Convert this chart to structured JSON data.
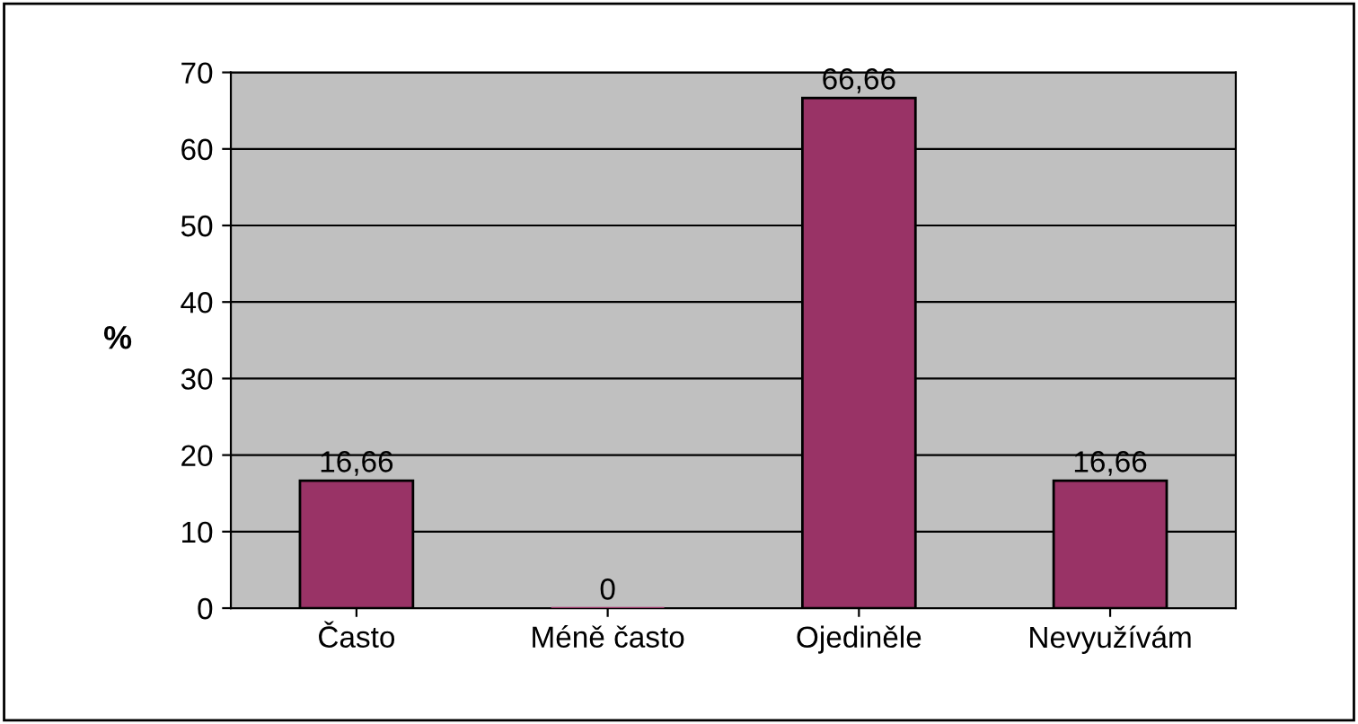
{
  "chart_data": {
    "type": "bar",
    "ylabel": "%",
    "categories": [
      "Často",
      "Méně často",
      "Ojediněle",
      "Nevyužívám"
    ],
    "values": [
      16.66,
      0,
      66.66,
      16.66
    ],
    "color": "#993366",
    "value_labels": [
      "16,66",
      "0",
      "66,66",
      "16,66"
    ],
    "ylim": [
      0,
      70
    ],
    "yticks": [
      0,
      10,
      20,
      30,
      40,
      50,
      60,
      70
    ],
    "grid": "y",
    "legend": false
  }
}
